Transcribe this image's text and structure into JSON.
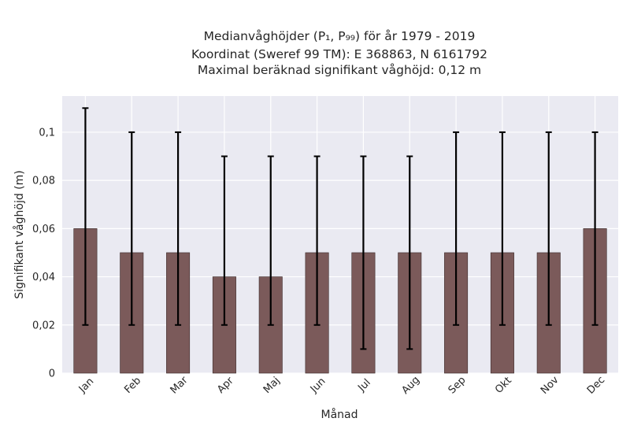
{
  "chart_data": {
    "type": "bar",
    "title_lines": [
      "Medianvåghöjder (P₁, P₉₉) för år 1979 - 2019",
      "Koordinat (Sweref 99 TM): E 368863, N 6161792",
      "Maximal beräknad signifikant våghöjd: 0,12 m"
    ],
    "xlabel": "Månad",
    "ylabel": "Signifikant våghöjd (m)",
    "categories": [
      "Jan",
      "Feb",
      "Mar",
      "Apr",
      "Maj",
      "Jun",
      "Jul",
      "Aug",
      "Sep",
      "Okt",
      "Nov",
      "Dec"
    ],
    "values": [
      0.06,
      0.05,
      0.05,
      0.04,
      0.04,
      0.05,
      0.05,
      0.05,
      0.05,
      0.05,
      0.05,
      0.06
    ],
    "p1": [
      0.02,
      0.02,
      0.02,
      0.02,
      0.02,
      0.02,
      0.01,
      0.01,
      0.02,
      0.02,
      0.02,
      0.02
    ],
    "p99": [
      0.11,
      0.1,
      0.1,
      0.09,
      0.09,
      0.09,
      0.09,
      0.09,
      0.1,
      0.1,
      0.1,
      0.1
    ],
    "ylim": [
      0,
      0.115
    ],
    "yticks": [
      0,
      0.02,
      0.04,
      0.06,
      0.08,
      0.1
    ],
    "ytick_labels": [
      "0",
      "0,02",
      "0,04",
      "0,06",
      "0,08",
      "0,1"
    ],
    "grid": true,
    "bar_color": "#7b5a5a",
    "plot_bg": "#eaeaf2"
  }
}
